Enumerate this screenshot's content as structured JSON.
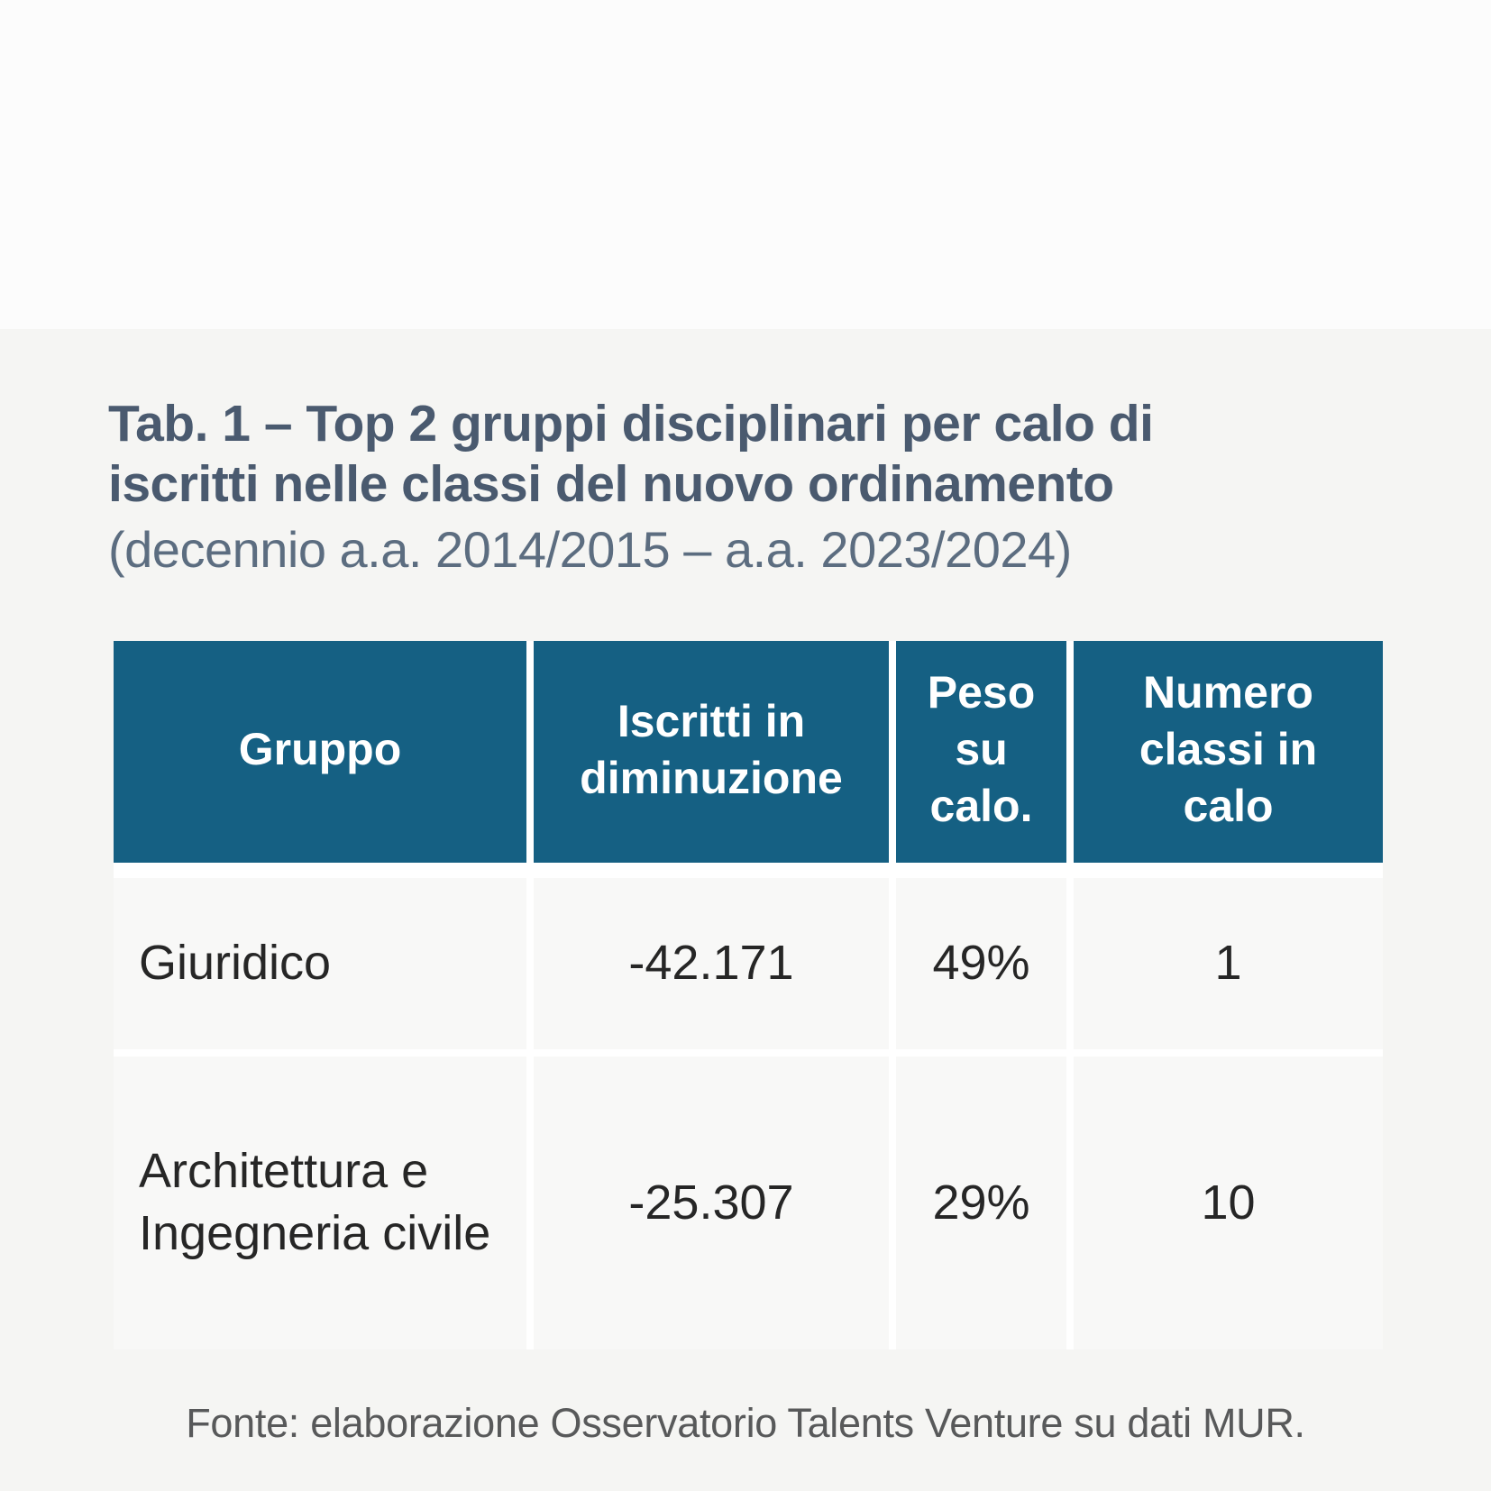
{
  "header": {
    "tag": "Tab. 1",
    "title_line1": "Tab. 1 – Top 2 gruppi disciplinari per calo di",
    "title_line2": "iscritti nelle classi del nuovo ordinamento",
    "subtitle": "(decennio a.a. 2014/2015 – a.a. 2023/2024)"
  },
  "table": {
    "headers": [
      "Gruppo",
      "Iscritti in diminuzione",
      "Peso su calo.",
      "Numero classi in calo"
    ],
    "rows": [
      [
        "Giuridico",
        "-42.171",
        "49%",
        "1"
      ],
      [
        "Architettura e Ingegneria civile",
        "-25.307",
        "29%",
        "10"
      ]
    ]
  },
  "footer": {
    "source": "Fonte: elaborazione Osservatorio Talents Venture su dati MUR."
  },
  "colors": {
    "page_bg": "#f5f5f3",
    "top_band": "#fcfcfc",
    "header_bg": "#156083",
    "header_text": "#ffffff",
    "cell_bg": "#f8f8f7",
    "separator": "#ffffff",
    "title_color": "#4a5a6f",
    "subtitle_color": "#5c6d80",
    "body_text": "#262626",
    "source_text": "#58595a"
  },
  "chart_data": {
    "type": "table",
    "title": "Tab. 1 – Top 2 gruppi disciplinari per calo di iscritti nelle classi del nuovo ordinamento",
    "subtitle": "(decennio a.a. 2014/2015 – a.a. 2023/2024)",
    "columns": [
      "Gruppo",
      "Iscritti in diminuzione",
      "Peso su calo.",
      "Numero classi in calo"
    ],
    "rows": [
      {
        "gruppo": "Giuridico",
        "iscritti_in_diminuzione": -42171,
        "peso_su_calo": "49%",
        "numero_classi_in_calo": 1
      },
      {
        "gruppo": "Architettura e Ingegneria civile",
        "iscritti_in_diminuzione": -25307,
        "peso_su_calo": "29%",
        "numero_classi_in_calo": 10
      }
    ],
    "source": "Fonte: elaborazione Osservatorio Talents Venture su dati MUR."
  }
}
